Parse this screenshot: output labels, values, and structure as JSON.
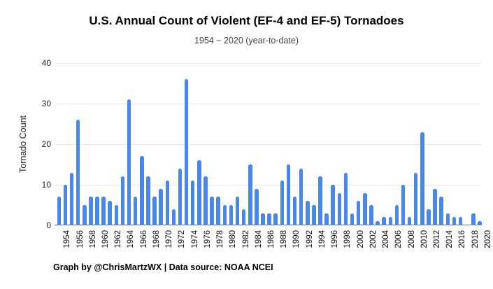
{
  "chart_data": {
    "type": "bar",
    "title": "U.S. Annual Count of Violent (EF-4 and EF-5) Tornadoes",
    "subtitle": "1954 − 2020 (year-to-date)",
    "xlabel": "",
    "ylabel": "Tornado Count",
    "ylim": [
      0,
      40
    ],
    "yticks": [
      0,
      10,
      20,
      30,
      40
    ],
    "grid": "horizontal-only",
    "legend": "none",
    "x_tick_step": "every 2 years, labels rotated 90° reading bottom-to-top",
    "categories": [
      1954,
      1955,
      1956,
      1957,
      1958,
      1959,
      1960,
      1961,
      1962,
      1963,
      1964,
      1965,
      1966,
      1967,
      1968,
      1969,
      1970,
      1971,
      1972,
      1973,
      1974,
      1975,
      1976,
      1977,
      1978,
      1979,
      1980,
      1981,
      1982,
      1983,
      1984,
      1985,
      1986,
      1987,
      1988,
      1989,
      1990,
      1991,
      1992,
      1993,
      1994,
      1995,
      1996,
      1997,
      1998,
      1999,
      2000,
      2001,
      2002,
      2003,
      2004,
      2005,
      2006,
      2007,
      2008,
      2009,
      2010,
      2011,
      2012,
      2013,
      2014,
      2015,
      2016,
      2017,
      2018,
      2019,
      2020
    ],
    "values": [
      7,
      10,
      13,
      26,
      5,
      7,
      7,
      7,
      6,
      5,
      12,
      31,
      7,
      17,
      12,
      7,
      9,
      11,
      4,
      14,
      36,
      11,
      16,
      12,
      7,
      7,
      5,
      5,
      7,
      4,
      15,
      9,
      3,
      3,
      3,
      11,
      15,
      7,
      14,
      6,
      5,
      12,
      3,
      10,
      8,
      13,
      3,
      6,
      8,
      5,
      1,
      2,
      2,
      5,
      10,
      2,
      13,
      23,
      4,
      9,
      7,
      3,
      2,
      2,
      0,
      3,
      1
    ]
  },
  "footer": {
    "text": "Graph by @ChrisMartzWX | Data source: NOAA NCEI"
  },
  "colors": {
    "bar": "#4987ec",
    "grid_light": "#e6e6e6",
    "axis_line": "#6e6e6e",
    "tick_text": "#222222"
  }
}
